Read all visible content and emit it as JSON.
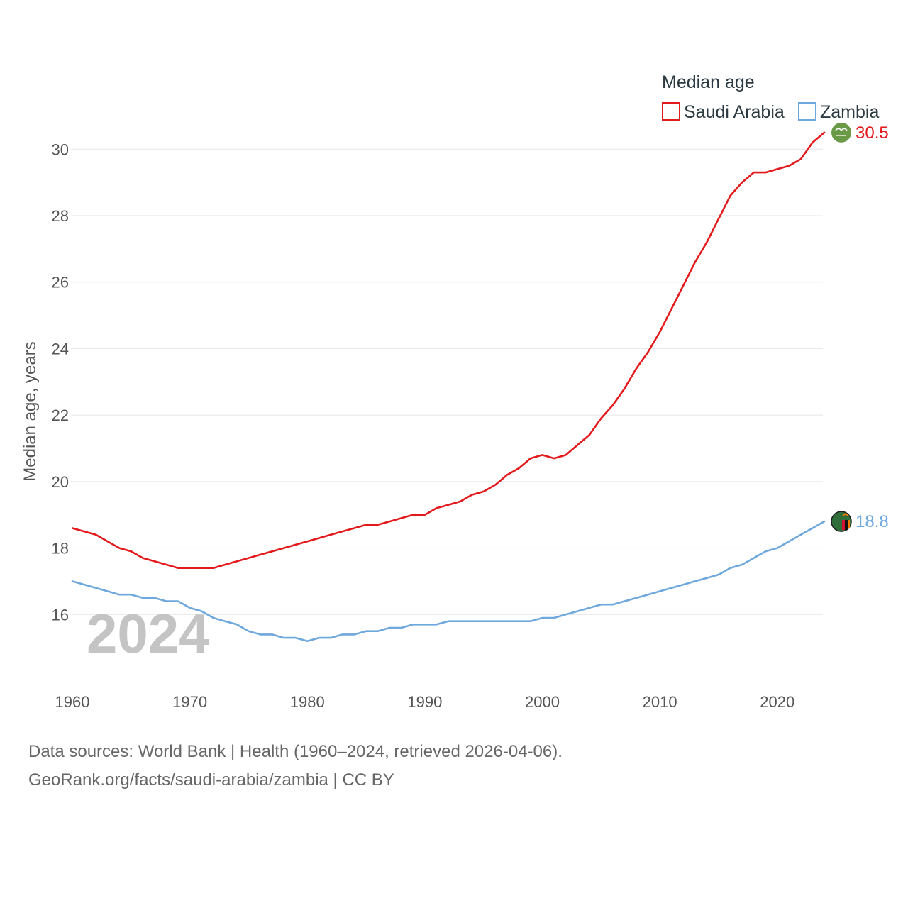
{
  "chart_data": {
    "type": "line",
    "legend_title": "Median age",
    "ylabel": "Median age, years",
    "current_year_label": "2024",
    "ylim": [
      14.0,
      31.5
    ],
    "xlim": [
      1960,
      2024
    ],
    "y_ticks": [
      16,
      18,
      20,
      22,
      24,
      26,
      28,
      30
    ],
    "x_ticks": [
      1960,
      1970,
      1980,
      1990,
      2000,
      2010,
      2020
    ],
    "legend_position": "top-right",
    "x": [
      1960,
      1961,
      1962,
      1963,
      1964,
      1965,
      1966,
      1967,
      1968,
      1969,
      1970,
      1971,
      1972,
      1973,
      1974,
      1975,
      1976,
      1977,
      1978,
      1979,
      1980,
      1981,
      1982,
      1983,
      1984,
      1985,
      1986,
      1987,
      1988,
      1989,
      1990,
      1991,
      1992,
      1993,
      1994,
      1995,
      1996,
      1997,
      1998,
      1999,
      2000,
      2001,
      2002,
      2003,
      2004,
      2005,
      2006,
      2007,
      2008,
      2009,
      2010,
      2011,
      2012,
      2013,
      2014,
      2015,
      2016,
      2017,
      2018,
      2019,
      2020,
      2021,
      2022,
      2023,
      2024
    ],
    "series": [
      {
        "name": "Saudi Arabia",
        "color": "#e31a1c",
        "end_label": "30.5",
        "flag_icon": "saudi-arabia-flag-icon",
        "values": [
          18.6,
          18.5,
          18.4,
          18.2,
          18.0,
          17.9,
          17.7,
          17.6,
          17.5,
          17.4,
          17.4,
          17.4,
          17.4,
          17.5,
          17.6,
          17.7,
          17.8,
          17.9,
          18.0,
          18.1,
          18.2,
          18.3,
          18.4,
          18.5,
          18.6,
          18.7,
          18.7,
          18.8,
          18.9,
          19.0,
          19.0,
          19.2,
          19.3,
          19.4,
          19.6,
          19.7,
          19.9,
          20.2,
          20.4,
          20.7,
          20.8,
          20.7,
          20.8,
          21.1,
          21.4,
          21.9,
          22.3,
          22.8,
          23.4,
          23.9,
          24.5,
          25.2,
          25.9,
          26.6,
          27.2,
          27.9,
          28.6,
          29.0,
          29.3,
          29.3,
          29.4,
          29.5,
          29.7,
          30.2,
          30.5
        ]
      },
      {
        "name": "Zambia",
        "color": "#6fa8dc",
        "end_label": "18.8",
        "flag_icon": "zambia-flag-icon",
        "values": [
          17.0,
          16.9,
          16.8,
          16.7,
          16.6,
          16.6,
          16.5,
          16.5,
          16.4,
          16.4,
          16.2,
          16.1,
          15.9,
          15.8,
          15.7,
          15.5,
          15.4,
          15.4,
          15.3,
          15.3,
          15.2,
          15.3,
          15.3,
          15.4,
          15.4,
          15.5,
          15.5,
          15.6,
          15.6,
          15.7,
          15.7,
          15.7,
          15.8,
          15.8,
          15.8,
          15.8,
          15.8,
          15.8,
          15.8,
          15.8,
          15.9,
          15.9,
          16.0,
          16.1,
          16.2,
          16.3,
          16.3,
          16.4,
          16.5,
          16.6,
          16.7,
          16.8,
          16.9,
          17.0,
          17.1,
          17.2,
          17.4,
          17.5,
          17.7,
          17.9,
          18.0,
          18.2,
          18.4,
          18.6,
          18.8
        ]
      }
    ]
  },
  "footer": {
    "line1": "Data sources: World Bank | Health (1960–2024, retrieved 2026-04-06).",
    "line2": "GeoRank.org/facts/saudi-arabia/zambia | CC BY"
  }
}
